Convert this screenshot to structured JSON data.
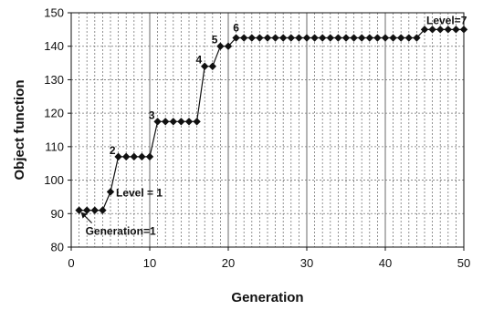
{
  "chart_data": {
    "type": "line",
    "xlabel": "Generation",
    "ylabel": "Object  function",
    "xlim": [
      0,
      50
    ],
    "ylim": [
      80,
      150
    ],
    "xticks": [
      0,
      10,
      20,
      30,
      40,
      50
    ],
    "yticks": [
      80,
      90,
      100,
      110,
      120,
      130,
      140,
      150
    ],
    "grid": true,
    "series": [
      {
        "x": [
          1,
          2,
          3,
          4,
          5,
          6,
          7,
          8,
          9,
          10,
          11,
          12,
          13,
          14,
          15,
          16,
          17,
          18,
          19,
          20,
          21,
          22,
          23,
          24,
          25,
          26,
          27,
          28,
          29,
          30,
          31,
          32,
          33,
          34,
          35,
          36,
          37,
          38,
          39,
          40,
          41,
          42,
          43,
          44,
          45,
          46,
          47,
          48,
          49,
          50
        ],
        "y": [
          91,
          91,
          91,
          91,
          96.5,
          107,
          107,
          107,
          107,
          107,
          117.5,
          117.5,
          117.5,
          117.5,
          117.5,
          117.5,
          134,
          134,
          140,
          140,
          142.5,
          142.5,
          142.5,
          142.5,
          142.5,
          142.5,
          142.5,
          142.5,
          142.5,
          142.5,
          142.5,
          142.5,
          142.5,
          142.5,
          142.5,
          142.5,
          142.5,
          142.5,
          142.5,
          142.5,
          142.5,
          142.5,
          142.5,
          142.5,
          145,
          145,
          145,
          145,
          145,
          145
        ]
      }
    ],
    "annotations": [
      {
        "text": "Generation=1",
        "x": 1,
        "y": 91
      },
      {
        "text": "Level = 1",
        "x": 5,
        "y": 96.5
      },
      {
        "text": "2",
        "x": 6,
        "y": 107
      },
      {
        "text": "3",
        "x": 11,
        "y": 117.5
      },
      {
        "text": "4",
        "x": 17,
        "y": 134
      },
      {
        "text": "5",
        "x": 19,
        "y": 140
      },
      {
        "text": "6",
        "x": 21,
        "y": 142.5
      },
      {
        "text": "Level=7",
        "x": 45,
        "y": 145
      }
    ]
  }
}
